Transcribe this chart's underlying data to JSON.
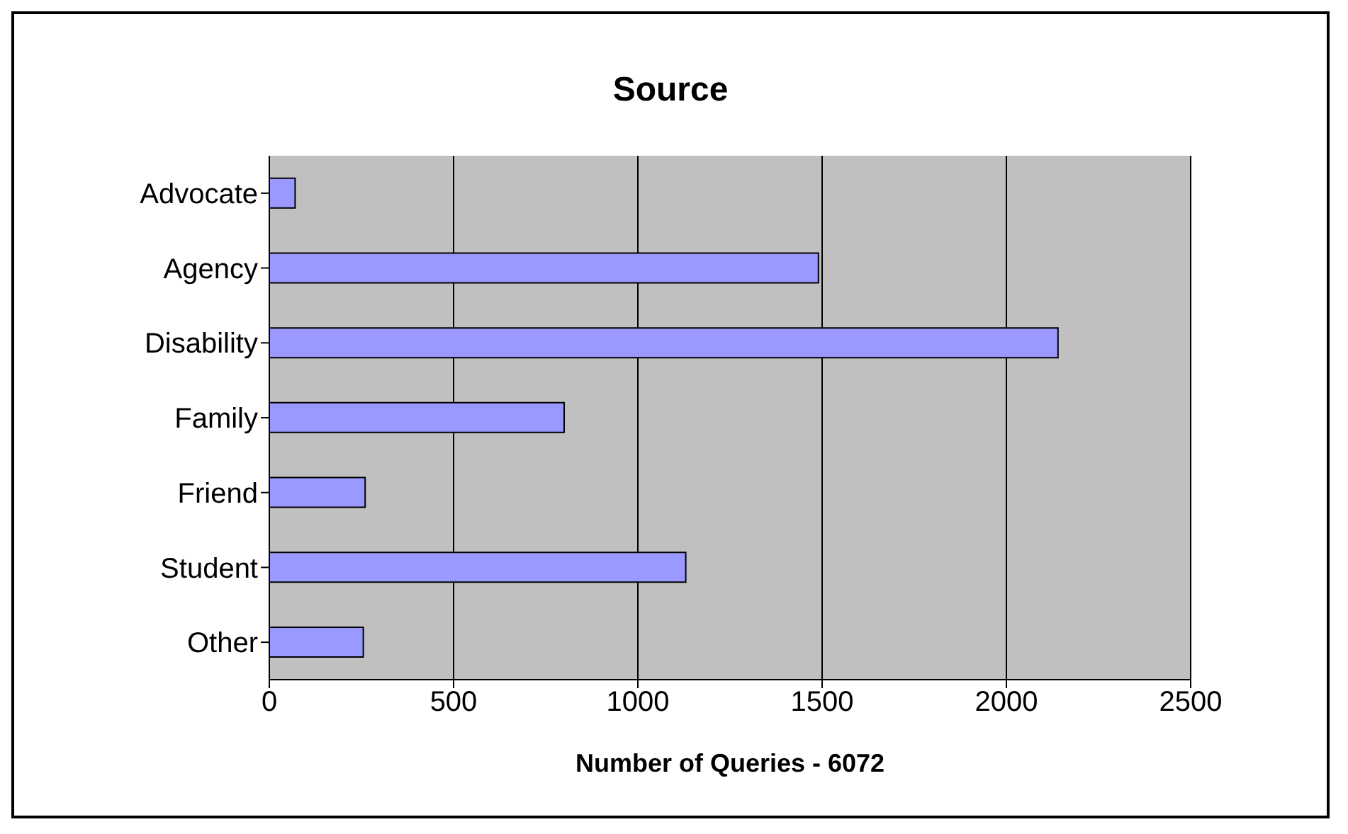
{
  "chart_data": {
    "type": "bar",
    "orientation": "horizontal",
    "title": "Source",
    "xlabel": "Number of Queries - 6072",
    "categories": [
      "Advocate",
      "Agency",
      "Disability",
      "Family",
      "Friend",
      "Student",
      "Other"
    ],
    "values": [
      70,
      1490,
      2140,
      800,
      260,
      1130,
      255
    ],
    "color": "#9999ff",
    "xlim": [
      0,
      2500
    ],
    "xticks": [
      0,
      500,
      1000,
      1500,
      2000,
      2500
    ],
    "grid": "x"
  }
}
